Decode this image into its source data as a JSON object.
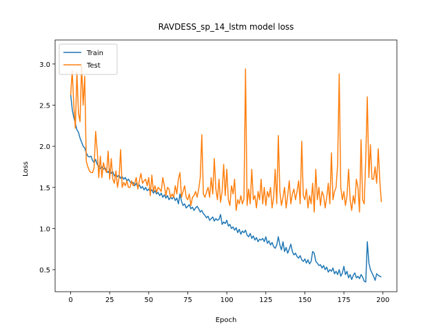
{
  "chart_data": {
    "type": "line",
    "title": "RAVDESS_sp_14_lstm model loss",
    "x_label": "Epoch",
    "y_label": "Loss",
    "x": [
      0,
      1,
      2,
      3,
      4,
      5,
      6,
      7,
      8,
      9,
      10,
      11,
      12,
      13,
      14,
      15,
      16,
      17,
      18,
      19,
      20,
      21,
      22,
      23,
      24,
      25,
      26,
      27,
      28,
      29,
      30,
      31,
      32,
      33,
      34,
      35,
      36,
      37,
      38,
      39,
      40,
      41,
      42,
      43,
      44,
      45,
      46,
      47,
      48,
      49,
      50,
      51,
      52,
      53,
      54,
      55,
      56,
      57,
      58,
      59,
      60,
      61,
      62,
      63,
      64,
      65,
      66,
      67,
      68,
      69,
      70,
      71,
      72,
      73,
      74,
      75,
      76,
      77,
      78,
      79,
      80,
      81,
      82,
      83,
      84,
      85,
      86,
      87,
      88,
      89,
      90,
      91,
      92,
      93,
      94,
      95,
      96,
      97,
      98,
      99,
      100,
      101,
      102,
      103,
      104,
      105,
      106,
      107,
      108,
      109,
      110,
      111,
      112,
      113,
      114,
      115,
      116,
      117,
      118,
      119,
      120,
      121,
      122,
      123,
      124,
      125,
      126,
      127,
      128,
      129,
      130,
      131,
      132,
      133,
      134,
      135,
      136,
      137,
      138,
      139,
      140,
      141,
      142,
      143,
      144,
      145,
      146,
      147,
      148,
      149,
      150,
      151,
      152,
      153,
      154,
      155,
      156,
      157,
      158,
      159,
      160,
      161,
      162,
      163,
      164,
      165,
      166,
      167,
      168,
      169,
      170,
      171,
      172,
      173,
      174,
      175,
      176,
      177,
      178,
      179,
      180,
      181,
      182,
      183,
      184,
      185,
      186,
      187,
      188,
      189,
      190,
      191,
      192,
      193,
      194,
      195,
      196,
      197,
      198,
      199
    ],
    "series": [
      {
        "name": "Train",
        "color": "#1f77b4",
        "values": [
          2.63,
          2.45,
          2.35,
          2.28,
          2.2,
          2.17,
          2.1,
          2.05,
          2.0,
          1.98,
          1.92,
          1.88,
          1.87,
          1.88,
          1.83,
          1.8,
          1.84,
          1.78,
          1.76,
          1.73,
          1.75,
          1.72,
          1.74,
          1.7,
          1.68,
          1.72,
          1.67,
          1.69,
          1.64,
          1.66,
          1.63,
          1.65,
          1.61,
          1.63,
          1.6,
          1.62,
          1.58,
          1.6,
          1.57,
          1.55,
          1.56,
          1.52,
          1.55,
          1.5,
          1.53,
          1.49,
          1.51,
          1.47,
          1.5,
          1.46,
          1.48,
          1.45,
          1.47,
          1.43,
          1.46,
          1.42,
          1.44,
          1.4,
          1.43,
          1.38,
          1.41,
          1.37,
          1.4,
          1.35,
          1.38,
          1.36,
          1.39,
          1.34,
          1.37,
          1.3,
          1.42,
          1.33,
          1.28,
          1.3,
          1.25,
          1.27,
          1.29,
          1.24,
          1.26,
          1.22,
          1.25,
          1.27,
          1.24,
          1.2,
          1.22,
          1.18,
          1.16,
          1.13,
          1.15,
          1.1,
          1.12,
          1.14,
          1.09,
          1.12,
          1.1,
          1.11,
          1.17,
          1.05,
          1.08,
          1.06,
          1.1,
          1.03,
          1.05,
          1.0,
          1.02,
          0.98,
          1.01,
          0.95,
          0.99,
          0.93,
          0.97,
          0.95,
          0.98,
          0.92,
          0.9,
          0.94,
          0.88,
          0.91,
          0.86,
          0.89,
          0.84,
          0.87,
          0.86,
          0.88,
          0.84,
          0.9,
          0.82,
          0.85,
          0.8,
          0.83,
          0.78,
          0.76,
          0.8,
          0.9,
          0.8,
          0.74,
          0.84,
          0.72,
          0.77,
          0.7,
          0.75,
          0.81,
          0.72,
          0.68,
          0.7,
          0.66,
          0.64,
          0.67,
          0.62,
          0.6,
          0.63,
          0.58,
          0.62,
          0.57,
          0.6,
          0.72,
          0.7,
          0.6,
          0.58,
          0.55,
          0.56,
          0.52,
          0.55,
          0.5,
          0.53,
          0.47,
          0.5,
          0.48,
          0.52,
          0.45,
          0.48,
          0.44,
          0.5,
          0.42,
          0.46,
          0.54,
          0.44,
          0.48,
          0.4,
          0.44,
          0.38,
          0.43,
          0.46,
          0.4,
          0.42,
          0.39,
          0.44,
          0.41,
          0.36,
          0.35,
          0.84,
          0.58,
          0.5,
          0.46,
          0.42,
          0.37,
          0.45,
          0.43,
          0.42,
          0.41
        ]
      },
      {
        "name": "Test",
        "color": "#ff7f0e",
        "values": [
          2.62,
          2.92,
          2.5,
          2.22,
          2.9,
          2.4,
          2.3,
          2.98,
          2.5,
          2.85,
          1.82,
          1.75,
          1.7,
          1.68,
          1.68,
          1.74,
          2.18,
          1.95,
          1.62,
          1.88,
          1.62,
          1.8,
          1.72,
          1.68,
          1.94,
          1.6,
          1.85,
          1.6,
          1.55,
          1.7,
          1.5,
          1.62,
          1.96,
          1.5,
          1.56,
          1.52,
          1.58,
          1.5,
          1.5,
          1.58,
          1.52,
          1.55,
          1.62,
          1.48,
          1.58,
          1.67,
          1.55,
          1.58,
          1.6,
          1.52,
          1.62,
          1.4,
          1.65,
          1.45,
          1.52,
          1.44,
          1.5,
          1.48,
          1.45,
          1.62,
          1.52,
          1.4,
          1.5,
          1.48,
          1.38,
          1.42,
          1.38,
          1.52,
          1.42,
          1.6,
          1.68,
          1.38,
          1.45,
          1.52,
          1.38,
          1.35,
          1.42,
          1.28,
          1.38,
          1.4,
          1.45,
          1.38,
          1.48,
          1.62,
          2.14,
          1.42,
          1.38,
          1.44,
          1.5,
          1.38,
          1.62,
          1.42,
          1.85,
          1.48,
          1.35,
          1.6,
          1.32,
          1.45,
          1.78,
          1.4,
          1.72,
          1.35,
          1.28,
          1.52,
          1.42,
          1.6,
          1.22,
          1.35,
          1.3,
          1.4,
          1.3,
          1.36,
          2.94,
          1.28,
          1.48,
          1.3,
          1.72,
          1.35,
          1.4,
          1.25,
          1.45,
          1.35,
          1.6,
          1.3,
          1.5,
          1.28,
          1.45,
          1.38,
          1.5,
          1.25,
          1.38,
          1.72,
          1.3,
          2.13,
          1.45,
          1.28,
          1.38,
          1.5,
          1.25,
          1.4,
          1.58,
          1.3,
          1.42,
          1.48,
          1.35,
          1.45,
          1.58,
          1.3,
          2.06,
          1.4,
          1.35,
          1.48,
          1.25,
          1.4,
          1.3,
          1.55,
          1.2,
          1.72,
          1.35,
          1.5,
          1.28,
          1.45,
          1.4,
          1.25,
          1.38,
          1.55,
          1.3,
          1.92,
          1.35,
          1.45,
          1.5,
          1.78,
          2.88,
          1.5,
          1.35,
          1.45,
          1.28,
          1.4,
          1.72,
          1.35,
          1.22,
          1.4,
          1.3,
          1.6,
          1.5,
          1.2,
          2.08,
          1.35,
          1.3,
          1.85,
          2.6,
          1.62,
          2.02,
          1.6,
          1.6,
          1.75,
          1.55,
          1.97,
          1.58,
          1.32
        ]
      }
    ],
    "xlim": [
      -9.95,
      208.95
    ],
    "xticks": [
      0,
      25,
      50,
      75,
      100,
      125,
      150,
      175,
      200
    ],
    "ylim": [
      0.232,
      3.292
    ],
    "yticks": [
      0.5,
      {
        "value": 1.0,
        "label": "1.0"
      },
      1.5,
      {
        "value": 2.0,
        "label": "2.0"
      },
      2.5,
      {
        "value": 3.0,
        "label": "3.0"
      }
    ],
    "grid": false,
    "legend": "upper left"
  }
}
